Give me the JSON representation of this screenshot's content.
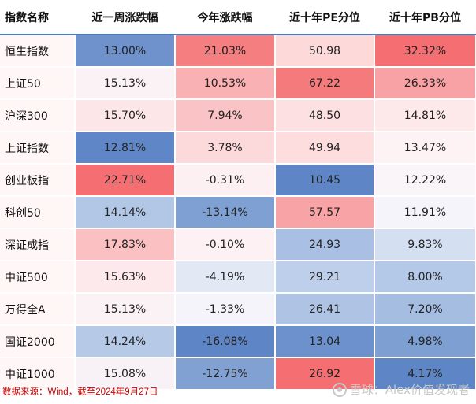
{
  "table": {
    "headers": [
      "指数名称",
      "近一周涨跌幅",
      "今年涨跌幅",
      "近十年PE分位",
      "近十年PB分位"
    ],
    "rows": [
      {
        "name": "恒生指数",
        "cells": [
          {
            "text": "13.00%",
            "color": "#6f92cc"
          },
          {
            "text": "21.03%",
            "color": "#f57e80"
          },
          {
            "text": "50.98",
            "color": "#fdd9da"
          },
          {
            "text": "32.32%",
            "color": "#f56f72"
          }
        ]
      },
      {
        "name": "上证50",
        "cells": [
          {
            "text": "15.13%",
            "color": "#fbf2f5"
          },
          {
            "text": "10.53%",
            "color": "#f9b1b3"
          },
          {
            "text": "67.22",
            "color": "#f57a7c"
          },
          {
            "text": "26.33%",
            "color": "#f8a2a5"
          }
        ]
      },
      {
        "name": "沪深300",
        "cells": [
          {
            "text": "15.70%",
            "color": "#fde6e8"
          },
          {
            "text": "7.94%",
            "color": "#fac3c5"
          },
          {
            "text": "48.50",
            "color": "#fde1e2"
          },
          {
            "text": "14.81%",
            "color": "#fde9ea"
          }
        ]
      },
      {
        "name": "上证指数",
        "cells": [
          {
            "text": "12.81%",
            "color": "#5f86c6"
          },
          {
            "text": "3.78%",
            "color": "#fcdadb"
          },
          {
            "text": "49.94",
            "color": "#fdddde"
          },
          {
            "text": "13.47%",
            "color": "#fdf3f4"
          }
        ]
      },
      {
        "name": "创业板指",
        "cells": [
          {
            "text": "22.71%",
            "color": "#f56f72"
          },
          {
            "text": "-0.31%",
            "color": "#fdf0f2"
          },
          {
            "text": "10.45",
            "color": "#5e86c6"
          },
          {
            "text": "12.22%",
            "color": "#f9f5f9"
          }
        ]
      },
      {
        "name": "科创50",
        "cells": [
          {
            "text": "14.14%",
            "color": "#b2c6e6"
          },
          {
            "text": "-13.14%",
            "color": "#7fa0d3"
          },
          {
            "text": "57.57",
            "color": "#f8a4a6"
          },
          {
            "text": "11.91%",
            "color": "#f5f4fa"
          }
        ]
      },
      {
        "name": "深证成指",
        "cells": [
          {
            "text": "17.83%",
            "color": "#fac0c2"
          },
          {
            "text": "-0.10%",
            "color": "#fdf1f3"
          },
          {
            "text": "24.93",
            "color": "#a9c0e4"
          },
          {
            "text": "9.83%",
            "color": "#d4e0f1"
          }
        ]
      },
      {
        "name": "中证500",
        "cells": [
          {
            "text": "15.63%",
            "color": "#fde9eb"
          },
          {
            "text": "-4.19%",
            "color": "#e2e9f5"
          },
          {
            "text": "29.21",
            "color": "#bdcfea"
          },
          {
            "text": "8.00%",
            "color": "#b4c8e7"
          }
        ]
      },
      {
        "name": "万得全A",
        "cells": [
          {
            "text": "15.13%",
            "color": "#fbf2f5"
          },
          {
            "text": "-1.33%",
            "color": "#f4f4fa"
          },
          {
            "text": "26.41",
            "color": "#afc4e5"
          },
          {
            "text": "7.20%",
            "color": "#a6bde2"
          }
        ]
      },
      {
        "name": "国证2000",
        "cells": [
          {
            "text": "14.24%",
            "color": "#b6c9e7"
          },
          {
            "text": "-16.08%",
            "color": "#5e86c6"
          },
          {
            "text": "13.04",
            "color": "#6d91cc"
          },
          {
            "text": "4.98%",
            "color": "#7e9fd2"
          }
        ]
      },
      {
        "name": "中证1000",
        "cells": [
          {
            "text": "15.08%",
            "color": "#f8f2f6"
          },
          {
            "text": "-12.75%",
            "color": "#81a1d3"
          },
          {
            "text": "26.92",
            "color": "#f56f72"
          },
          {
            "text": "4.17%",
            "color": "#5e86c6"
          }
        ]
      }
    ]
  },
  "footer": {
    "source": "数据来源：Wind，截至2024年9月27日"
  },
  "watermark": {
    "text": "雪球：Alex价值发现者"
  }
}
